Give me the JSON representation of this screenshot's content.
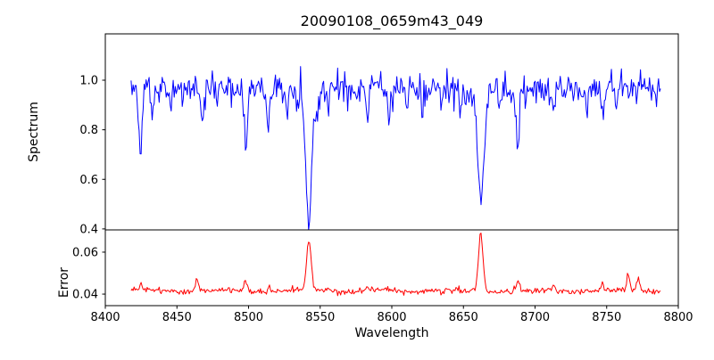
{
  "title": "20090108_0659m43_049",
  "xlabel": "Wavelength",
  "panels": {
    "spectrum": {
      "ylabel": "Spectrum",
      "line_color": "#0000ff"
    },
    "error": {
      "ylabel": "Error",
      "line_color": "#ff0000"
    }
  },
  "axes": {
    "x": {
      "values": [
        8400,
        8450,
        8500,
        8550,
        8600,
        8650,
        8700,
        8750,
        8800
      ],
      "labels": [
        "8400",
        "8450",
        "8500",
        "8550",
        "8600",
        "8650",
        "8700",
        "8750",
        "8800"
      ]
    },
    "spectrum_y": {
      "values": [
        0.4,
        0.6,
        0.8,
        1.0
      ],
      "labels": [
        "0.4",
        "0.6",
        "0.8",
        "1.0"
      ]
    },
    "error_y": {
      "values": [
        0.04,
        0.06
      ],
      "labels": [
        "0.04",
        "0.06"
      ]
    }
  },
  "chart_data": [
    {
      "type": "line",
      "series_name": "Spectrum",
      "title": "20090108_0659m43_049",
      "xlabel": "",
      "ylabel": "Spectrum",
      "color": "#0000ff",
      "xlim": [
        8400,
        8800
      ],
      "ylim": [
        0.396,
        1.187
      ],
      "yticks": [
        0.4,
        0.6,
        0.8,
        1.0
      ],
      "x_range": [
        8418,
        8788
      ],
      "sample_step": 0.7,
      "continuum_level": 0.965,
      "noise_std": 0.034,
      "noise_seed": 20090108,
      "absorption_lines": [
        {
          "center": 8424.5,
          "depth": 0.24,
          "sigma": 1.0
        },
        {
          "center": 8433.0,
          "depth": 0.13,
          "sigma": 0.8
        },
        {
          "center": 8446.0,
          "depth": 0.09,
          "sigma": 0.8
        },
        {
          "center": 8468.0,
          "depth": 0.15,
          "sigma": 1.0
        },
        {
          "center": 8498.0,
          "depth": 0.27,
          "sigma": 1.3
        },
        {
          "center": 8514.0,
          "depth": 0.16,
          "sigma": 1.0
        },
        {
          "center": 8527.0,
          "depth": 0.09,
          "sigma": 0.8
        },
        {
          "center": 8536.3,
          "depth": -0.17,
          "sigma": 0.45
        },
        {
          "center": 8542.1,
          "depth": 0.45,
          "sigma": 1.9
        },
        {
          "center": 8542.1,
          "depth": 0.09,
          "sigma": 6.0
        },
        {
          "center": 8556.0,
          "depth": 0.08,
          "sigma": 0.8
        },
        {
          "center": 8583.0,
          "depth": 0.12,
          "sigma": 0.9
        },
        {
          "center": 8598.0,
          "depth": 0.1,
          "sigma": 0.9
        },
        {
          "center": 8611.0,
          "depth": 0.08,
          "sigma": 0.8
        },
        {
          "center": 8621.0,
          "depth": 0.1,
          "sigma": 0.9
        },
        {
          "center": 8648.0,
          "depth": 0.08,
          "sigma": 0.8
        },
        {
          "center": 8662.1,
          "depth": 0.37,
          "sigma": 1.8
        },
        {
          "center": 8662.1,
          "depth": 0.09,
          "sigma": 5.0
        },
        {
          "center": 8675.0,
          "depth": 0.1,
          "sigma": 0.8
        },
        {
          "center": 8688.0,
          "depth": 0.25,
          "sigma": 1.1
        },
        {
          "center": 8713.0,
          "depth": 0.12,
          "sigma": 0.9
        },
        {
          "center": 8736.0,
          "depth": 0.09,
          "sigma": 0.8
        },
        {
          "center": 8747.0,
          "depth": 0.11,
          "sigma": 0.9
        },
        {
          "center": 8757.0,
          "depth": 0.08,
          "sigma": 0.8
        }
      ]
    },
    {
      "type": "line",
      "series_name": "Error",
      "xlabel": "Wavelength",
      "ylabel": "Error",
      "color": "#ff0000",
      "xlim": [
        8400,
        8800
      ],
      "ylim": [
        0.0345,
        0.0706
      ],
      "yticks": [
        0.04,
        0.06
      ],
      "x_range": [
        8418,
        8788
      ],
      "sample_step": 0.7,
      "baseline": 0.0415,
      "noise_std": 0.0007,
      "noise_seed": 43,
      "wiggle": {
        "amplitude": 0.0005,
        "period": 55
      },
      "peaks": [
        {
          "center": 8425.0,
          "height": 0.0025,
          "sigma": 1.0
        },
        {
          "center": 8464.0,
          "height": 0.006,
          "sigma": 1.2
        },
        {
          "center": 8498.0,
          "height": 0.0045,
          "sigma": 1.2
        },
        {
          "center": 8514.0,
          "height": 0.003,
          "sigma": 1.0
        },
        {
          "center": 8542.1,
          "height": 0.0235,
          "sigma": 1.6
        },
        {
          "center": 8583.0,
          "height": 0.002,
          "sigma": 1.0
        },
        {
          "center": 8662.1,
          "height": 0.028,
          "sigma": 1.5
        },
        {
          "center": 8688.0,
          "height": 0.0045,
          "sigma": 1.1
        },
        {
          "center": 8713.0,
          "height": 0.003,
          "sigma": 1.0
        },
        {
          "center": 8747.0,
          "height": 0.002,
          "sigma": 1.0
        },
        {
          "center": 8765.0,
          "height": 0.008,
          "sigma": 1.0
        },
        {
          "center": 8772.0,
          "height": 0.006,
          "sigma": 0.9
        }
      ]
    }
  ]
}
